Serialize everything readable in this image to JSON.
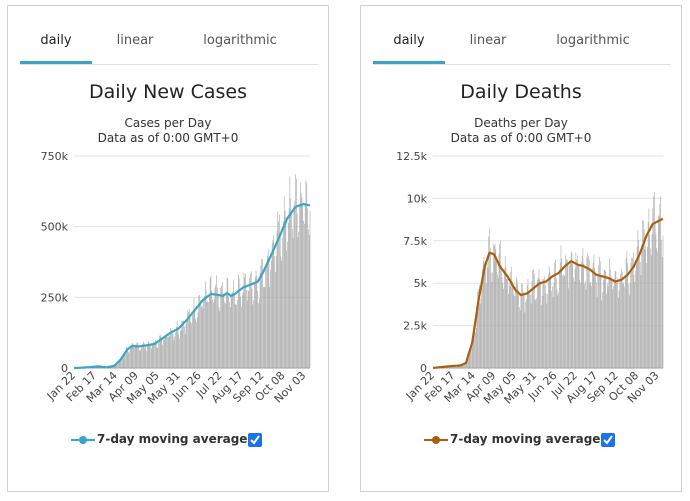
{
  "panels": [
    {
      "tabs": [
        "daily",
        "linear",
        "logarithmic"
      ],
      "active_tab": "daily",
      "legend_label": "7-day moving average",
      "checkbox_checked": true
    },
    {
      "tabs": [
        "daily",
        "linear",
        "logarithmic"
      ],
      "active_tab": "daily",
      "legend_label": "7-day moving average",
      "checkbox_checked": true
    }
  ],
  "chart_data": [
    {
      "type": "bar",
      "title": "Daily New Cases",
      "subtitle_lines": [
        "Cases per Day",
        "Data as of 0:00 GMT+0"
      ],
      "xlabel": "",
      "ylabel": "",
      "ylim": [
        0,
        750000
      ],
      "yticks": [
        0,
        250000,
        500000,
        750000
      ],
      "ytick_labels": [
        "0",
        "250k",
        "500k",
        "750k"
      ],
      "grid": true,
      "x_categories": [
        "Jan 22",
        "Feb 17",
        "Mar 14",
        "Apr 09",
        "May 05",
        "May 31",
        "Jun 26",
        "Jul 22",
        "Aug 17",
        "Sep 12",
        "Oct 08",
        "Nov 03"
      ],
      "x_start_day": 0,
      "x_end_day": 293,
      "bar_color": "#a9a9a9",
      "line_color": "#39a5c7",
      "series": [
        {
          "name": "7-day moving average",
          "kind": "line",
          "anchors": [
            [
              0,
              0
            ],
            [
              10,
              1000
            ],
            [
              20,
              3000
            ],
            [
              30,
              6000
            ],
            [
              40,
              2000
            ],
            [
              50,
              8000
            ],
            [
              58,
              30000
            ],
            [
              66,
              65000
            ],
            [
              72,
              78000
            ],
            [
              80,
              76000
            ],
            [
              90,
              80000
            ],
            [
              100,
              85000
            ],
            [
              110,
              105000
            ],
            [
              120,
              125000
            ],
            [
              130,
              140000
            ],
            [
              140,
              170000
            ],
            [
              150,
              205000
            ],
            [
              160,
              240000
            ],
            [
              170,
              262000
            ],
            [
              180,
              258000
            ],
            [
              185,
              255000
            ],
            [
              190,
              265000
            ],
            [
              195,
              255000
            ],
            [
              200,
              262000
            ],
            [
              210,
              285000
            ],
            [
              220,
              296000
            ],
            [
              228,
              305000
            ],
            [
              235,
              340000
            ],
            [
              245,
              400000
            ],
            [
              255,
              465000
            ],
            [
              265,
              530000
            ],
            [
              275,
              570000
            ],
            [
              285,
              580000
            ],
            [
              293,
              575000
            ]
          ]
        },
        {
          "name": "Daily cases",
          "kind": "bars",
          "note": "daily values fluctuate around the 7-day average, peak near 650k"
        }
      ]
    },
    {
      "type": "bar",
      "title": "Daily Deaths",
      "subtitle_lines": [
        "Deaths per Day",
        "Data as of 0:00 GMT+0"
      ],
      "xlabel": "",
      "ylabel": "",
      "ylim": [
        0,
        12500
      ],
      "yticks": [
        0,
        2500,
        5000,
        7500,
        10000,
        12500
      ],
      "ytick_labels": [
        "0",
        "2.5k",
        "5k",
        "7.5k",
        "10k",
        "12.5k"
      ],
      "grid": true,
      "x_categories": [
        "Jan 22",
        "Feb 17",
        "Mar 14",
        "Apr 09",
        "May 05",
        "May 31",
        "Jun 26",
        "Jul 22",
        "Aug 17",
        "Sep 12",
        "Oct 08",
        "Nov 03"
      ],
      "x_start_day": 0,
      "x_end_day": 293,
      "bar_color": "#a9a9a9",
      "line_color": "#a8600f",
      "series": [
        {
          "name": "7-day moving average",
          "kind": "line",
          "anchors": [
            [
              0,
              0
            ],
            [
              10,
              50
            ],
            [
              20,
              100
            ],
            [
              35,
              150
            ],
            [
              42,
              300
            ],
            [
              50,
              1500
            ],
            [
              58,
              4000
            ],
            [
              66,
              6000
            ],
            [
              72,
              6800
            ],
            [
              78,
              6700
            ],
            [
              85,
              6000
            ],
            [
              95,
              5400
            ],
            [
              105,
              4600
            ],
            [
              112,
              4300
            ],
            [
              120,
              4400
            ],
            [
              128,
              4700
            ],
            [
              136,
              5000
            ],
            [
              144,
              5100
            ],
            [
              152,
              5400
            ],
            [
              160,
              5600
            ],
            [
              168,
              6000
            ],
            [
              176,
              6300
            ],
            [
              184,
              6100
            ],
            [
              192,
              6000
            ],
            [
              200,
              5800
            ],
            [
              208,
              5500
            ],
            [
              216,
              5400
            ],
            [
              224,
              5300
            ],
            [
              232,
              5100
            ],
            [
              240,
              5200
            ],
            [
              248,
              5500
            ],
            [
              256,
              6000
            ],
            [
              264,
              6800
            ],
            [
              272,
              7800
            ],
            [
              280,
              8500
            ],
            [
              293,
              8800
            ]
          ]
        },
        {
          "name": "Daily deaths",
          "kind": "bars",
          "note": "daily values fluctuate around the 7-day average, peak near 10k"
        }
      ]
    }
  ]
}
